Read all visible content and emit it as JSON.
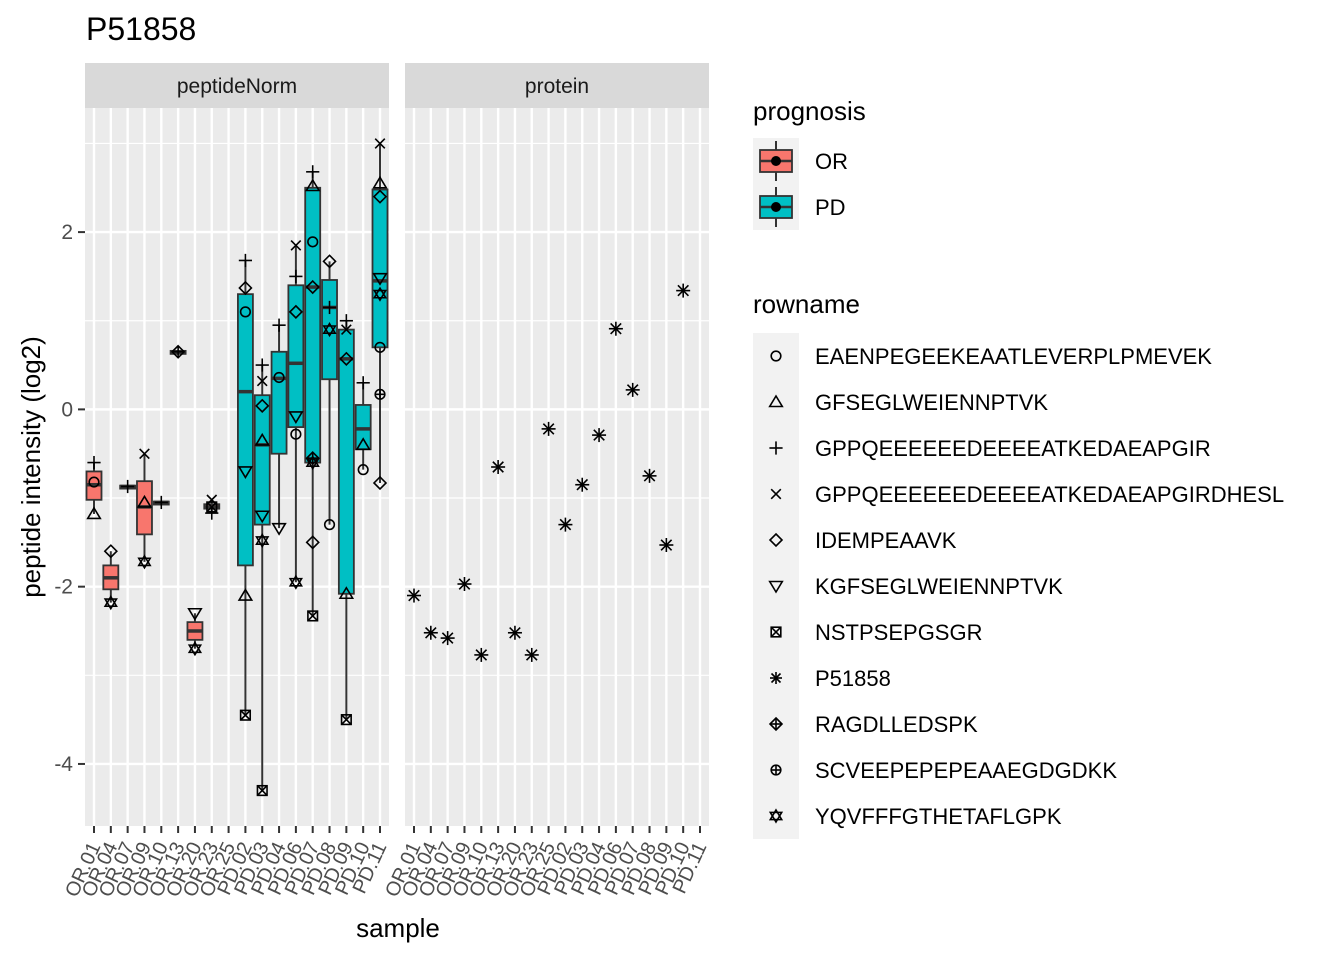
{
  "chart_data": {
    "type": "boxplot+scatter",
    "title": "P51858",
    "xlabel": "sample",
    "ylabel": "peptide intensity (log2)",
    "ylim": [
      -4.7,
      3.4
    ],
    "y_ticks": [
      -4,
      -2,
      0,
      2
    ],
    "grid": true,
    "legend_position": "right",
    "samples": [
      "OR.01",
      "OR.04",
      "OR.07",
      "OR.09",
      "OR.10",
      "OR.13",
      "OR.20",
      "OR.23",
      "OR.25",
      "PD.02",
      "PD.03",
      "PD.04",
      "PD.06",
      "PD.07",
      "PD.08",
      "PD.09",
      "PD.10",
      "PD.11"
    ],
    "panels": [
      "peptideNorm",
      "protein"
    ],
    "prognosis_legend": {
      "title": "prognosis",
      "items": [
        {
          "label": "OR",
          "color": "#F8766D"
        },
        {
          "label": "PD",
          "color": "#00BFC4"
        }
      ]
    },
    "rowname_legend": {
      "title": "rowname",
      "items": [
        {
          "label": "EAENPEGEEKEAATLEVERPLPMEVEK",
          "shape": "circle"
        },
        {
          "label": "GFSEGLWEIENNPTVK",
          "shape": "triangle-up"
        },
        {
          "label": "GPPQEEEEEEDEEEEATKEDAEAPGIR",
          "shape": "plus"
        },
        {
          "label": "GPPQEEEEEEDEEEEATKEDAEAPGIRDHESL",
          "shape": "cross"
        },
        {
          "label": "IDEMPEAAVK",
          "shape": "diamond"
        },
        {
          "label": "KGFSEGLWEIENNPTVK",
          "shape": "triangle-down"
        },
        {
          "label": "NSTPSEPGSGR",
          "shape": "square-cross"
        },
        {
          "label": "P51858",
          "shape": "asterisk"
        },
        {
          "label": "RAGDLLEDSPK",
          "shape": "diamond-plus"
        },
        {
          "label": "SCVEEPEPEPEAAEGDGDKK",
          "shape": "circle-plus"
        },
        {
          "label": "YQVFFFGTHETAFLGPK",
          "shape": "star-david"
        }
      ]
    },
    "boxes": [
      {
        "sample": "OR.01",
        "prognosis": "OR",
        "q1": -1.02,
        "median": -0.85,
        "q3": -0.7,
        "whisker_low": -1.18,
        "whisker_high": -0.6
      },
      {
        "sample": "OR.04",
        "prognosis": "OR",
        "q1": -2.03,
        "median": -1.9,
        "q3": -1.76,
        "whisker_low": -2.18,
        "whisker_high": -1.6
      },
      {
        "sample": "OR.07",
        "prognosis": "OR",
        "q1": -0.88,
        "median": -0.87,
        "q3": -0.86,
        "whisker_low": -0.88,
        "whisker_high": -0.86
      },
      {
        "sample": "OR.09",
        "prognosis": "OR",
        "q1": -1.41,
        "median": -1.1,
        "q3": -0.81,
        "whisker_low": -1.72,
        "whisker_high": -0.5
      },
      {
        "sample": "OR.10",
        "prognosis": "OR",
        "q1": -1.06,
        "median": -1.05,
        "q3": -1.04,
        "whisker_low": -1.06,
        "whisker_high": -1.04
      },
      {
        "sample": "OR.13",
        "prognosis": "OR",
        "q1": 0.64,
        "median": 0.65,
        "q3": 0.66,
        "whisker_low": 0.64,
        "whisker_high": 0.66
      },
      {
        "sample": "OR.20",
        "prognosis": "OR",
        "q1": -2.6,
        "median": -2.5,
        "q3": -2.4,
        "whisker_low": -2.7,
        "whisker_high": -2.3
      },
      {
        "sample": "OR.23",
        "prognosis": "OR",
        "q1": -1.12,
        "median": -1.1,
        "q3": -1.07,
        "whisker_low": -1.17,
        "whisker_high": -1.02
      },
      {
        "sample": "PD.02",
        "prognosis": "PD",
        "q1": -1.76,
        "median": 0.2,
        "q3": 1.3,
        "whisker_low": -3.45,
        "whisker_high": 1.68
      },
      {
        "sample": "PD.03",
        "prognosis": "PD",
        "q1": -1.3,
        "median": -0.4,
        "q3": 0.16,
        "whisker_low": -4.3,
        "whisker_high": 0.5
      },
      {
        "sample": "PD.04",
        "prognosis": "PD",
        "q1": -0.5,
        "median": 0.35,
        "q3": 0.65,
        "whisker_low": -1.34,
        "whisker_high": 0.95
      },
      {
        "sample": "PD.06",
        "prognosis": "PD",
        "q1": -0.2,
        "median": 0.52,
        "q3": 1.4,
        "whisker_low": -1.95,
        "whisker_high": 1.85
      },
      {
        "sample": "PD.07",
        "prognosis": "PD",
        "q1": -0.6,
        "median": 1.38,
        "q3": 2.5,
        "whisker_low": -2.33,
        "whisker_high": 2.68
      },
      {
        "sample": "PD.08",
        "prognosis": "PD",
        "q1": 0.34,
        "median": 1.15,
        "q3": 1.46,
        "whisker_low": -1.3,
        "whisker_high": 1.67
      },
      {
        "sample": "PD.09",
        "prognosis": "PD",
        "q1": -2.08,
        "median": 0.57,
        "q3": 0.9,
        "whisker_low": -3.5,
        "whisker_high": 1.0
      },
      {
        "sample": "PD.10",
        "prognosis": "PD",
        "q1": -0.45,
        "median": -0.22,
        "q3": 0.05,
        "whisker_low": -0.68,
        "whisker_high": 0.3
      },
      {
        "sample": "PD.11",
        "prognosis": "PD",
        "q1": 0.7,
        "median": 1.45,
        "q3": 2.48,
        "whisker_low": -0.83,
        "whisker_high": 3.0
      }
    ],
    "peptide_points": [
      {
        "sample": "OR.01",
        "shape": "circle",
        "y": -0.82
      },
      {
        "sample": "OR.01",
        "shape": "triangle-up",
        "y": -1.18
      },
      {
        "sample": "OR.01",
        "shape": "plus",
        "y": -0.6
      },
      {
        "sample": "OR.04",
        "shape": "diamond",
        "y": -1.6
      },
      {
        "sample": "OR.04",
        "shape": "star-david",
        "y": -2.18
      },
      {
        "sample": "OR.07",
        "shape": "plus",
        "y": -0.87
      },
      {
        "sample": "OR.09",
        "shape": "cross",
        "y": -0.5
      },
      {
        "sample": "OR.09",
        "shape": "triangle-up",
        "y": -1.05
      },
      {
        "sample": "OR.09",
        "shape": "star-david",
        "y": -1.72
      },
      {
        "sample": "OR.10",
        "shape": "plus",
        "y": -1.05
      },
      {
        "sample": "OR.13",
        "shape": "diamond-plus",
        "y": 0.65
      },
      {
        "sample": "OR.20",
        "shape": "triangle-down",
        "y": -2.3
      },
      {
        "sample": "OR.20",
        "shape": "star-david",
        "y": -2.7
      },
      {
        "sample": "OR.23",
        "shape": "cross",
        "y": -1.02
      },
      {
        "sample": "OR.23",
        "shape": "square-cross",
        "y": -1.1
      },
      {
        "sample": "OR.23",
        "shape": "plus",
        "y": -1.17
      },
      {
        "sample": "PD.02",
        "shape": "plus",
        "y": 1.68
      },
      {
        "sample": "PD.02",
        "shape": "diamond",
        "y": 1.37
      },
      {
        "sample": "PD.02",
        "shape": "circle",
        "y": 1.1
      },
      {
        "sample": "PD.02",
        "shape": "triangle-down",
        "y": -0.7
      },
      {
        "sample": "PD.02",
        "shape": "triangle-up",
        "y": -2.1
      },
      {
        "sample": "PD.02",
        "shape": "square-cross",
        "y": -3.45
      },
      {
        "sample": "PD.03",
        "shape": "plus",
        "y": 0.5
      },
      {
        "sample": "PD.03",
        "shape": "cross",
        "y": 0.32
      },
      {
        "sample": "PD.03",
        "shape": "diamond",
        "y": 0.04
      },
      {
        "sample": "PD.03",
        "shape": "triangle-up",
        "y": -0.35
      },
      {
        "sample": "PD.03",
        "shape": "triangle-down",
        "y": -1.2
      },
      {
        "sample": "PD.03",
        "shape": "star-david",
        "y": -1.48
      },
      {
        "sample": "PD.03",
        "shape": "square-cross",
        "y": -4.3
      },
      {
        "sample": "PD.04",
        "shape": "plus",
        "y": 0.95
      },
      {
        "sample": "PD.04",
        "shape": "circle",
        "y": 0.36
      },
      {
        "sample": "PD.04",
        "shape": "triangle-down",
        "y": -1.34
      },
      {
        "sample": "PD.06",
        "shape": "cross",
        "y": 1.85
      },
      {
        "sample": "PD.06",
        "shape": "plus",
        "y": 1.5
      },
      {
        "sample": "PD.06",
        "shape": "diamond",
        "y": 1.1
      },
      {
        "sample": "PD.06",
        "shape": "triangle-down",
        "y": -0.08
      },
      {
        "sample": "PD.06",
        "shape": "circle",
        "y": -0.28
      },
      {
        "sample": "PD.06",
        "shape": "star-david",
        "y": -1.95
      },
      {
        "sample": "PD.07",
        "shape": "plus",
        "y": 2.68
      },
      {
        "sample": "PD.07",
        "shape": "triangle-up",
        "y": 2.52
      },
      {
        "sample": "PD.07",
        "shape": "circle",
        "y": 1.89
      },
      {
        "sample": "PD.07",
        "shape": "diamond",
        "y": 1.38
      },
      {
        "sample": "PD.07",
        "shape": "star-david",
        "y": -0.6
      },
      {
        "sample": "PD.07",
        "shape": "diamond-plus",
        "y": -0.55
      },
      {
        "sample": "PD.07",
        "shape": "diamond",
        "y": -1.5
      },
      {
        "sample": "PD.07",
        "shape": "square-cross",
        "y": -2.33
      },
      {
        "sample": "PD.08",
        "shape": "diamond",
        "y": 1.67
      },
      {
        "sample": "PD.08",
        "shape": "plus",
        "y": 1.15
      },
      {
        "sample": "PD.08",
        "shape": "star-david",
        "y": 0.9
      },
      {
        "sample": "PD.08",
        "shape": "circle",
        "y": -1.3
      },
      {
        "sample": "PD.09",
        "shape": "plus",
        "y": 1.0
      },
      {
        "sample": "PD.09",
        "shape": "cross",
        "y": 0.9
      },
      {
        "sample": "PD.09",
        "shape": "diamond",
        "y": 0.57
      },
      {
        "sample": "PD.09",
        "shape": "triangle-up",
        "y": -2.08
      },
      {
        "sample": "PD.09",
        "shape": "square-cross",
        "y": -3.5
      },
      {
        "sample": "PD.10",
        "shape": "plus",
        "y": 0.3
      },
      {
        "sample": "PD.10",
        "shape": "triangle-up",
        "y": -0.4
      },
      {
        "sample": "PD.10",
        "shape": "circle",
        "y": -0.68
      },
      {
        "sample": "PD.11",
        "shape": "cross",
        "y": 3.0
      },
      {
        "sample": "PD.11",
        "shape": "triangle-up",
        "y": 2.55
      },
      {
        "sample": "PD.11",
        "shape": "diamond",
        "y": 2.4
      },
      {
        "sample": "PD.11",
        "shape": "triangle-down",
        "y": 1.48
      },
      {
        "sample": "PD.11",
        "shape": "star-david",
        "y": 1.3
      },
      {
        "sample": "PD.11",
        "shape": "circle",
        "y": 0.7
      },
      {
        "sample": "PD.11",
        "shape": "circle-plus",
        "y": 0.17
      },
      {
        "sample": "PD.11",
        "shape": "diamond",
        "y": -0.83
      }
    ],
    "protein_points": [
      {
        "sample": "OR.01",
        "y": -2.1
      },
      {
        "sample": "OR.04",
        "y": -2.52
      },
      {
        "sample": "OR.07",
        "y": -2.58
      },
      {
        "sample": "OR.09",
        "y": -1.97
      },
      {
        "sample": "OR.10",
        "y": -2.77
      },
      {
        "sample": "OR.13",
        "y": -0.65
      },
      {
        "sample": "OR.20",
        "y": -2.52
      },
      {
        "sample": "OR.23",
        "y": -2.77
      },
      {
        "sample": "OR.25",
        "y": -0.22
      },
      {
        "sample": "PD.02",
        "y": -1.3
      },
      {
        "sample": "PD.03",
        "y": -0.85
      },
      {
        "sample": "PD.04",
        "y": -0.29
      },
      {
        "sample": "PD.06",
        "y": 0.91
      },
      {
        "sample": "PD.07",
        "y": 0.22
      },
      {
        "sample": "PD.08",
        "y": -0.75
      },
      {
        "sample": "PD.09",
        "y": -1.53
      },
      {
        "sample": "PD.10",
        "y": 1.34
      }
    ]
  }
}
